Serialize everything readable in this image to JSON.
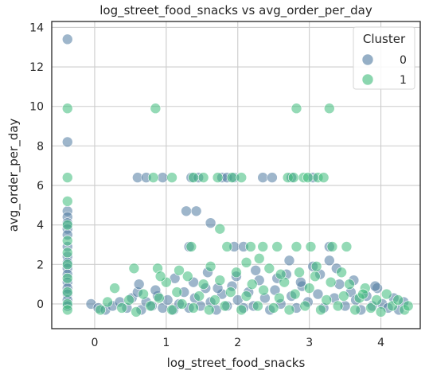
{
  "chart_data": {
    "type": "scatter",
    "title": "log_street_food_snacks vs avg_order_per_day",
    "xlabel": "log_street_food_snacks",
    "ylabel": "avg_order_per_day",
    "xlim": [
      -0.6,
      4.55
    ],
    "ylim": [
      -1.25,
      14.3
    ],
    "xticks": [
      0,
      1,
      2,
      3,
      4
    ],
    "yticks": [
      0,
      2,
      4,
      6,
      8,
      10,
      12,
      14
    ],
    "grid": true,
    "legend": {
      "title": "Cluster",
      "placement": "top-right"
    },
    "series": [
      {
        "name": "0",
        "color": "#4f7aa0",
        "points": [
          [
            -0.38,
            13.4
          ],
          [
            -0.38,
            8.2
          ],
          [
            -0.38,
            4.7
          ],
          [
            -0.38,
            4.4
          ],
          [
            -0.38,
            4.1
          ],
          [
            -0.38,
            3.8
          ],
          [
            -0.38,
            3.5
          ],
          [
            -0.38,
            2.9
          ],
          [
            -0.38,
            2.4
          ],
          [
            -0.38,
            2.1
          ],
          [
            -0.38,
            1.8
          ],
          [
            -0.38,
            1.5
          ],
          [
            -0.38,
            1.1
          ],
          [
            -0.38,
            0.8
          ],
          [
            -0.38,
            0.5
          ],
          [
            -0.38,
            0.2
          ],
          [
            -0.38,
            -0.1
          ],
          [
            -0.05,
            0.0
          ],
          [
            0.05,
            -0.2
          ],
          [
            0.15,
            -0.3
          ],
          [
            0.25,
            -0.1
          ],
          [
            0.35,
            0.1
          ],
          [
            0.45,
            -0.2
          ],
          [
            0.52,
            0.3
          ],
          [
            0.6,
            0.6
          ],
          [
            0.65,
            -0.3
          ],
          [
            0.72,
            0.1
          ],
          [
            0.8,
            -0.1
          ],
          [
            0.88,
            0.4
          ],
          [
            0.95,
            -0.2
          ],
          [
            1.02,
            0.2
          ],
          [
            1.1,
            -0.3
          ],
          [
            1.18,
            0.0
          ],
          [
            1.25,
            0.6
          ],
          [
            1.32,
            -0.2
          ],
          [
            1.4,
            0.3
          ],
          [
            1.48,
            -0.1
          ],
          [
            1.55,
            0.8
          ],
          [
            1.62,
            0.1
          ],
          [
            1.7,
            -0.3
          ],
          [
            1.78,
            0.5
          ],
          [
            1.85,
            -0.1
          ],
          [
            1.92,
            0.9
          ],
          [
            2.0,
            0.2
          ],
          [
            2.08,
            -0.2
          ],
          [
            2.15,
            0.6
          ],
          [
            2.22,
            -0.1
          ],
          [
            2.3,
            1.2
          ],
          [
            2.38,
            0.3
          ],
          [
            2.45,
            -0.3
          ],
          [
            2.52,
            0.7
          ],
          [
            2.6,
            0.0
          ],
          [
            2.68,
            1.5
          ],
          [
            2.75,
            0.4
          ],
          [
            2.82,
            -0.2
          ],
          [
            2.9,
            0.9
          ],
          [
            2.98,
            0.1
          ],
          [
            3.05,
            1.9
          ],
          [
            3.12,
            0.5
          ],
          [
            3.2,
            -0.2
          ],
          [
            3.28,
            2.2
          ],
          [
            3.35,
            0.3
          ],
          [
            3.42,
            1.0
          ],
          [
            3.5,
            -0.1
          ],
          [
            3.58,
            0.6
          ],
          [
            3.65,
            0.2
          ],
          [
            3.72,
            -0.3
          ],
          [
            3.8,
            0.4
          ],
          [
            3.88,
            -0.1
          ],
          [
            3.95,
            0.8
          ],
          [
            4.02,
            0.0
          ],
          [
            4.1,
            -0.2
          ],
          [
            4.18,
            0.3
          ],
          [
            4.25,
            -0.3
          ],
          [
            4.32,
            0.1
          ],
          [
            0.6,
            6.4
          ],
          [
            0.72,
            6.4
          ],
          [
            0.95,
            6.4
          ],
          [
            1.35,
            6.4
          ],
          [
            1.45,
            6.4
          ],
          [
            1.78,
            6.4
          ],
          [
            1.85,
            6.4
          ],
          [
            1.95,
            6.4
          ],
          [
            2.35,
            6.4
          ],
          [
            2.48,
            6.4
          ],
          [
            2.75,
            6.4
          ],
          [
            3.05,
            6.4
          ],
          [
            1.28,
            4.7
          ],
          [
            1.42,
            4.7
          ],
          [
            1.62,
            4.1
          ],
          [
            1.32,
            2.9
          ],
          [
            1.95,
            2.9
          ],
          [
            2.08,
            2.9
          ],
          [
            2.72,
            2.2
          ],
          [
            3.28,
            2.9
          ],
          [
            0.62,
            1.0
          ],
          [
            0.85,
            0.7
          ],
          [
            1.12,
            1.3
          ],
          [
            1.38,
            1.1
          ],
          [
            1.58,
            1.6
          ],
          [
            1.72,
            0.8
          ],
          [
            1.98,
            1.4
          ],
          [
            2.25,
            1.7
          ],
          [
            2.55,
            1.3
          ],
          [
            2.88,
            1.1
          ],
          [
            3.15,
            1.5
          ],
          [
            3.38,
            1.8
          ],
          [
            3.62,
            1.2
          ],
          [
            3.92,
            0.9
          ]
        ]
      },
      {
        "name": "1",
        "color": "#3dbb7a",
        "points": [
          [
            -0.38,
            9.9
          ],
          [
            -0.38,
            6.4
          ],
          [
            -0.38,
            5.2
          ],
          [
            -0.38,
            4.0
          ],
          [
            -0.38,
            3.2
          ],
          [
            -0.38,
            2.6
          ],
          [
            -0.38,
            2.0
          ],
          [
            -0.38,
            1.3
          ],
          [
            -0.38,
            0.6
          ],
          [
            -0.38,
            0.0
          ],
          [
            -0.38,
            -0.3
          ],
          [
            0.85,
            9.9
          ],
          [
            2.82,
            9.9
          ],
          [
            3.28,
            9.9
          ],
          [
            0.82,
            6.4
          ],
          [
            1.08,
            6.4
          ],
          [
            1.38,
            6.4
          ],
          [
            1.52,
            6.4
          ],
          [
            1.72,
            6.4
          ],
          [
            1.92,
            6.4
          ],
          [
            2.05,
            6.4
          ],
          [
            2.7,
            6.4
          ],
          [
            2.78,
            6.4
          ],
          [
            2.92,
            6.4
          ],
          [
            2.98,
            6.4
          ],
          [
            3.12,
            6.4
          ],
          [
            3.2,
            6.4
          ],
          [
            1.75,
            3.8
          ],
          [
            1.35,
            2.9
          ],
          [
            1.85,
            2.9
          ],
          [
            2.18,
            2.9
          ],
          [
            2.35,
            2.9
          ],
          [
            2.55,
            2.9
          ],
          [
            2.82,
            2.9
          ],
          [
            3.02,
            2.9
          ],
          [
            3.32,
            2.9
          ],
          [
            3.52,
            2.9
          ],
          [
            0.55,
            1.8
          ],
          [
            0.88,
            1.8
          ],
          [
            2.12,
            2.1
          ],
          [
            0.08,
            -0.3
          ],
          [
            0.18,
            0.1
          ],
          [
            0.28,
            0.8
          ],
          [
            0.38,
            -0.2
          ],
          [
            0.48,
            0.2
          ],
          [
            0.58,
            -0.4
          ],
          [
            0.68,
            0.5
          ],
          [
            0.78,
            -0.1
          ],
          [
            0.9,
            0.3
          ],
          [
            1.0,
            1.1
          ],
          [
            1.08,
            -0.3
          ],
          [
            1.15,
            0.6
          ],
          [
            1.22,
            0.0
          ],
          [
            1.3,
            1.4
          ],
          [
            1.38,
            -0.2
          ],
          [
            1.46,
            0.4
          ],
          [
            1.52,
            1.0
          ],
          [
            1.6,
            -0.3
          ],
          [
            1.68,
            0.2
          ],
          [
            1.75,
            1.2
          ],
          [
            1.82,
            -0.1
          ],
          [
            1.9,
            0.6
          ],
          [
            1.98,
            1.6
          ],
          [
            2.05,
            -0.3
          ],
          [
            2.12,
            0.4
          ],
          [
            2.2,
            1.0
          ],
          [
            2.28,
            -0.1
          ],
          [
            2.36,
            0.7
          ],
          [
            2.44,
            1.8
          ],
          [
            2.5,
            -0.2
          ],
          [
            2.58,
            0.3
          ],
          [
            2.65,
            1.1
          ],
          [
            2.72,
            -0.3
          ],
          [
            2.8,
            0.5
          ],
          [
            2.86,
            1.6
          ],
          [
            2.94,
            -0.1
          ],
          [
            3.0,
            0.8
          ],
          [
            3.08,
            1.4
          ],
          [
            3.16,
            -0.3
          ],
          [
            3.24,
            0.2
          ],
          [
            3.3,
            1.1
          ],
          [
            3.4,
            -0.1
          ],
          [
            3.48,
            0.4
          ],
          [
            3.56,
            1.0
          ],
          [
            3.64,
            -0.3
          ],
          [
            3.7,
            0.3
          ],
          [
            3.78,
            0.8
          ],
          [
            3.86,
            -0.2
          ],
          [
            3.94,
            0.2
          ],
          [
            4.0,
            -0.4
          ],
          [
            4.08,
            0.5
          ],
          [
            4.16,
            -0.1
          ],
          [
            4.24,
            0.2
          ],
          [
            4.33,
            -0.3
          ],
          [
            4.38,
            -0.1
          ],
          [
            0.92,
            1.4
          ],
          [
            1.18,
            1.7
          ],
          [
            1.62,
            1.9
          ],
          [
            2.3,
            2.3
          ],
          [
            2.6,
            1.5
          ],
          [
            3.1,
            1.9
          ],
          [
            3.45,
            1.6
          ],
          [
            3.75,
            0.5
          ]
        ]
      }
    ]
  }
}
